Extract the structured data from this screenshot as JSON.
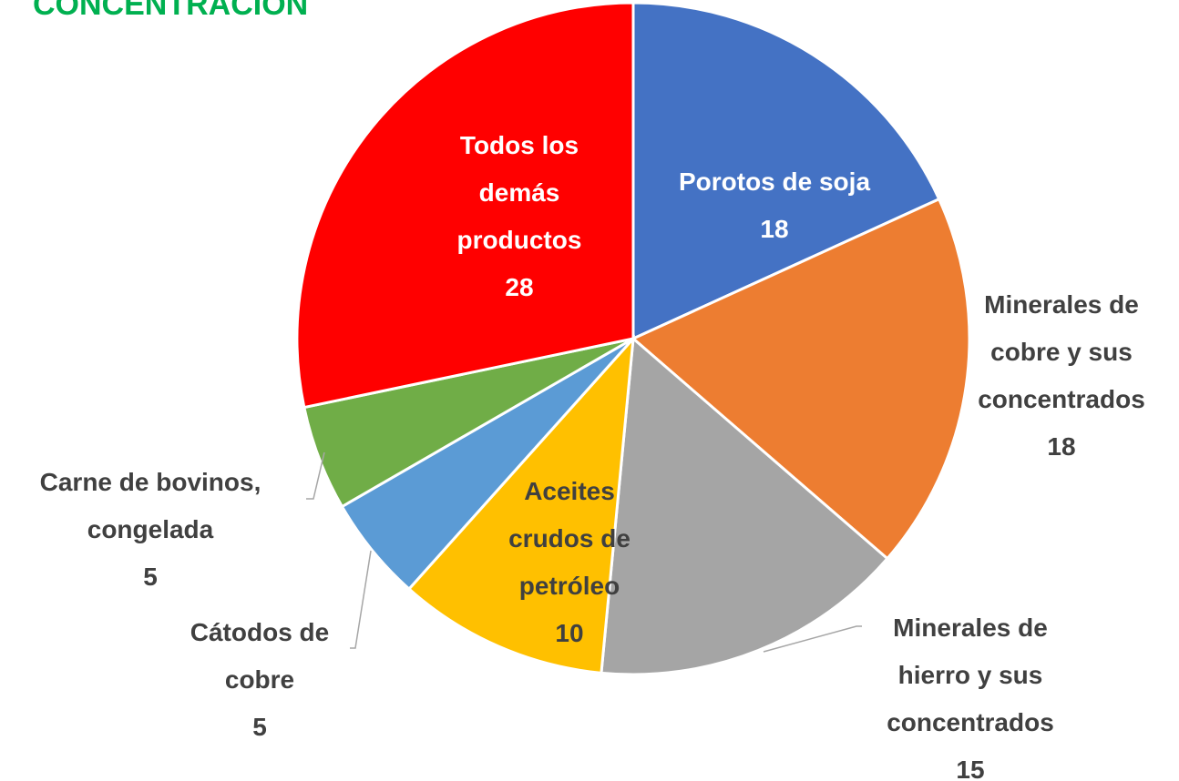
{
  "chart_data": {
    "type": "pie",
    "title": "CONCENTRACIÓN",
    "categories": [
      "Porotos de soja",
      "Minerales de cobre y sus concentrados",
      "Minerales de hierro y sus concentrados",
      "Aceites crudos de petróleo",
      "Cátodos de cobre",
      "Carne de bovinos, congelada",
      "Todos los demás productos"
    ],
    "values": [
      18,
      18,
      15,
      10,
      5,
      5,
      28
    ],
    "colors": [
      "#4472c4",
      "#ed7d31",
      "#a5a5a5",
      "#ffc000",
      "#5b9bd5",
      "#70ad47",
      "#ff0000"
    ]
  }
}
